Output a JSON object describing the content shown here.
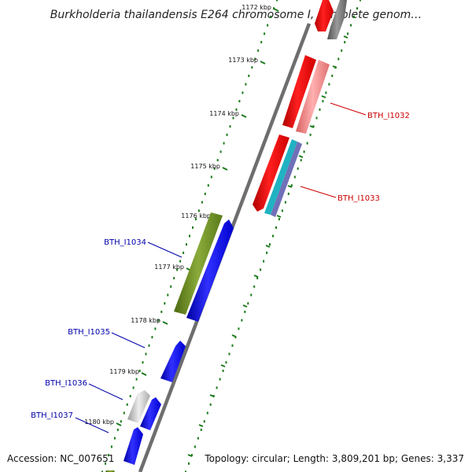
{
  "title": "Burkholderia thailandensis E264 chromosome I, complete genom…",
  "ticks": [
    "1172 kbp",
    "1173 kbp",
    "1174 kbp",
    "1175 kbp",
    "1176 kbp",
    "1177 kbp",
    "1178 kbp",
    "1179 kbp",
    "1180 kbp"
  ],
  "gene_labels": [
    {
      "text": "BTH_I1032",
      "color": "#cc0000"
    },
    {
      "text": "BTH_I1033",
      "color": "#cc0000"
    },
    {
      "text": "BTH_I1034",
      "color": "#0000aa"
    },
    {
      "text": "BTH_I1035",
      "color": "#0000aa"
    },
    {
      "text": "BTH_I1036",
      "color": "#0000aa"
    },
    {
      "text": "BTH_I1037",
      "color": "#0000aa"
    }
  ],
  "colors": {
    "red": "#ff0000",
    "pink": "#f08080",
    "blue": "#0000ff",
    "olive": "#6b8e23",
    "gray": "#777777",
    "lightgray": "#cccccc",
    "teal": "#20b2c2",
    "slate": "#6a6ab0",
    "dots": "#1a7a1a"
  },
  "footer": {
    "accession": "Accession: NC_007651",
    "summary": "Topology: circular; Length: 3,809,201 bp; Genes: 3,337"
  }
}
